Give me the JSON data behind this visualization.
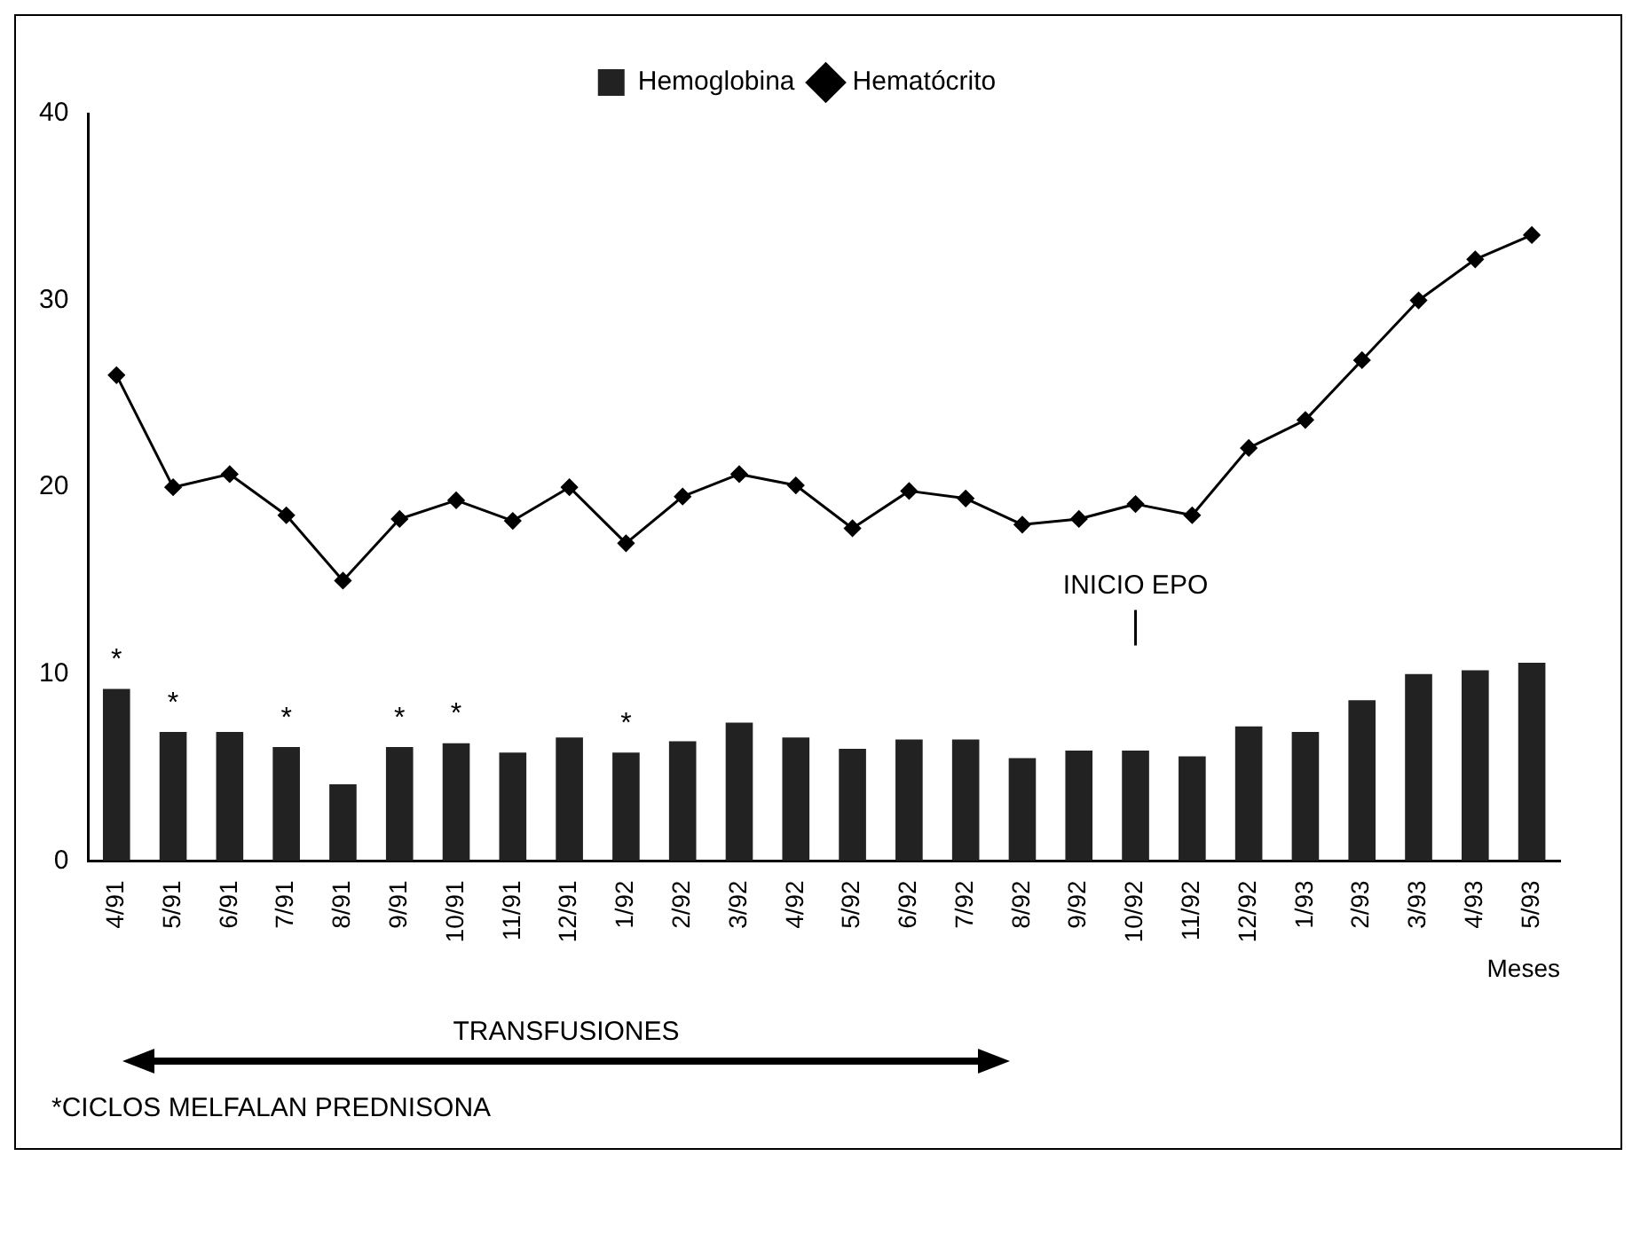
{
  "chart_data": {
    "type": "bar",
    "xlabel": "Meses",
    "categories": [
      "4/91",
      "5/91",
      "6/91",
      "7/91",
      "8/91",
      "9/91",
      "10/91",
      "11/91",
      "12/91",
      "1/92",
      "2/92",
      "3/92",
      "4/92",
      "5/92",
      "6/92",
      "7/92",
      "8/92",
      "9/92",
      "10/92",
      "11/92",
      "12/92",
      "1/93",
      "2/93",
      "3/93",
      "4/93",
      "5/93"
    ],
    "series": [
      {
        "name": "Hemoglobina",
        "color": "#222222",
        "values": [
          9.2,
          6.9,
          6.9,
          6.1,
          4.1,
          6.1,
          6.3,
          5.8,
          6.6,
          5.8,
          6.4,
          7.4,
          6.6,
          6.0,
          6.5,
          6.5,
          5.5,
          5.9,
          5.9,
          5.6,
          7.2,
          6.9,
          8.6,
          10.0,
          10.2,
          10.6
        ],
        "value_labels": [
          "*",
          "*",
          null,
          "*",
          null,
          "*",
          "*",
          null,
          null,
          "*",
          null,
          null,
          null,
          null,
          null,
          null,
          null,
          null,
          null,
          null,
          null,
          null,
          null,
          null,
          null,
          null
        ]
      },
      {
        "name": "Hematócrito",
        "type": "line",
        "color": "#000000",
        "values": [
          26,
          20,
          20.7,
          18.5,
          15,
          18.3,
          19.3,
          18.2,
          20,
          17,
          19.5,
          20.7,
          20.1,
          17.8,
          19.8,
          19.4,
          18,
          18.3,
          19.1,
          18.5,
          22.1,
          23.6,
          26.8,
          30,
          32.2,
          33.5
        ]
      }
    ],
    "ylim": [
      0,
      40
    ],
    "yticks": [
      0,
      10,
      20,
      30,
      40
    ],
    "grid": false,
    "legend": "top",
    "marker": "diamond",
    "line_style": "solid",
    "ref_lines": [
      {
        "axis": "x",
        "value": "10/92",
        "label": "INICIO EPO"
      }
    ],
    "annotations": [
      "TRANSFUSIONES",
      "*CICLOS MELFALAN PREDNISONA"
    ]
  }
}
